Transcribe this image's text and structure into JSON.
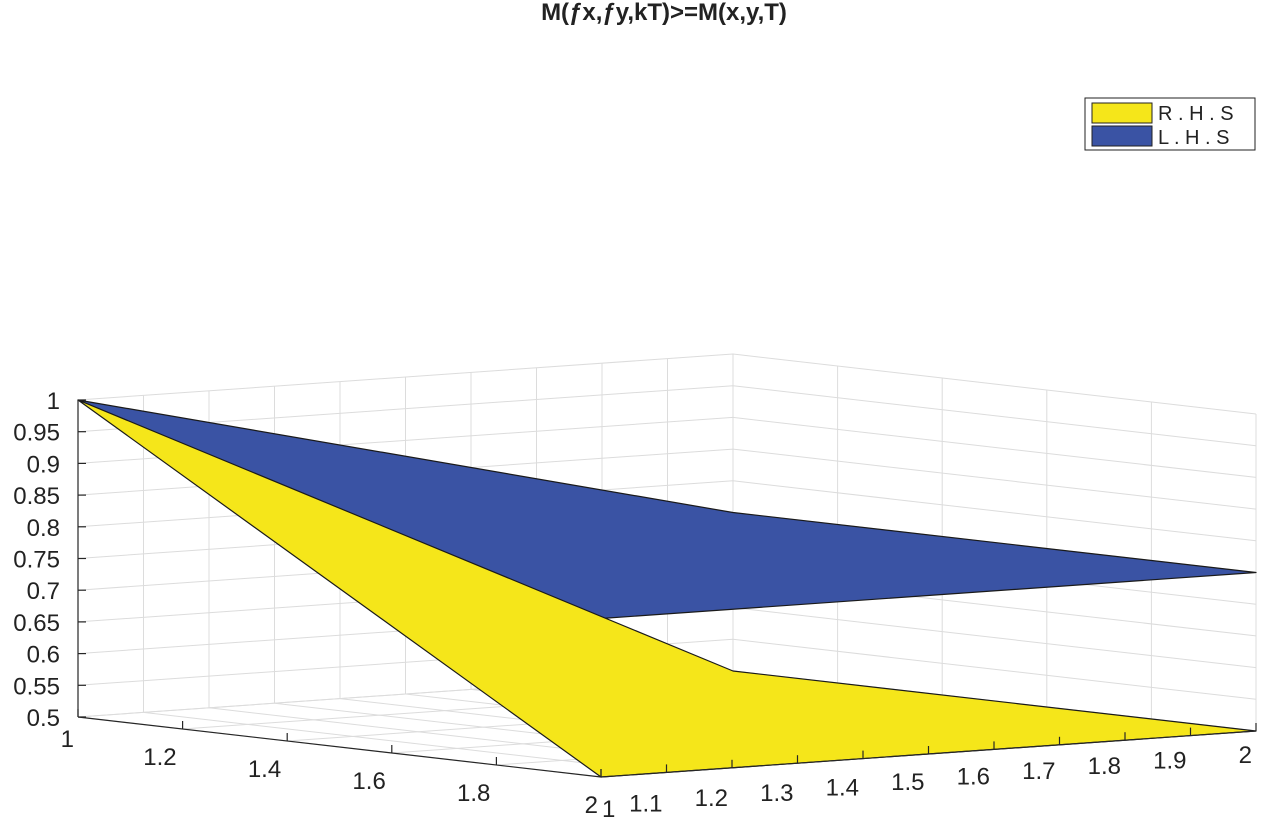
{
  "chart_data": {
    "type": "surface3d",
    "title": "M(ƒx,ƒy,kT)>=M(x,y,T)",
    "zlim": [
      0.5,
      1
    ],
    "x_ticks": [
      "1",
      "1.2",
      "1.4",
      "1.6",
      "1.8",
      "2"
    ],
    "y_ticks": [
      "1",
      "1.1",
      "1.2",
      "1.3",
      "1.4",
      "1.5",
      "1.6",
      "1.7",
      "1.8",
      "1.9",
      "2"
    ],
    "z_ticks": [
      "1",
      "0.95",
      "0.9",
      "0.85",
      "0.8",
      "0.75",
      "0.7",
      "0.65",
      "0.6",
      "0.55",
      "0.5"
    ],
    "grid": true,
    "legend_position": "top-right",
    "series": [
      {
        "name": "R . H . S",
        "color": "#f5e61a",
        "points": [
          {
            "x": 1,
            "y": 1,
            "z": 1.0
          },
          {
            "x": 1,
            "y": 2,
            "z": 0.5
          },
          {
            "x": 2,
            "y": 1,
            "z": 0.5
          },
          {
            "x": 2,
            "y": 2,
            "z": 0.5
          }
        ]
      },
      {
        "name": "L . H . S",
        "color": "#3a53a4",
        "points": [
          {
            "x": 1,
            "y": 1,
            "z": 1.0
          },
          {
            "x": 1,
            "y": 2,
            "z": 0.75
          },
          {
            "x": 2,
            "y": 1,
            "z": 0.75
          },
          {
            "x": 2,
            "y": 2,
            "z": 0.75
          }
        ]
      }
    ]
  }
}
